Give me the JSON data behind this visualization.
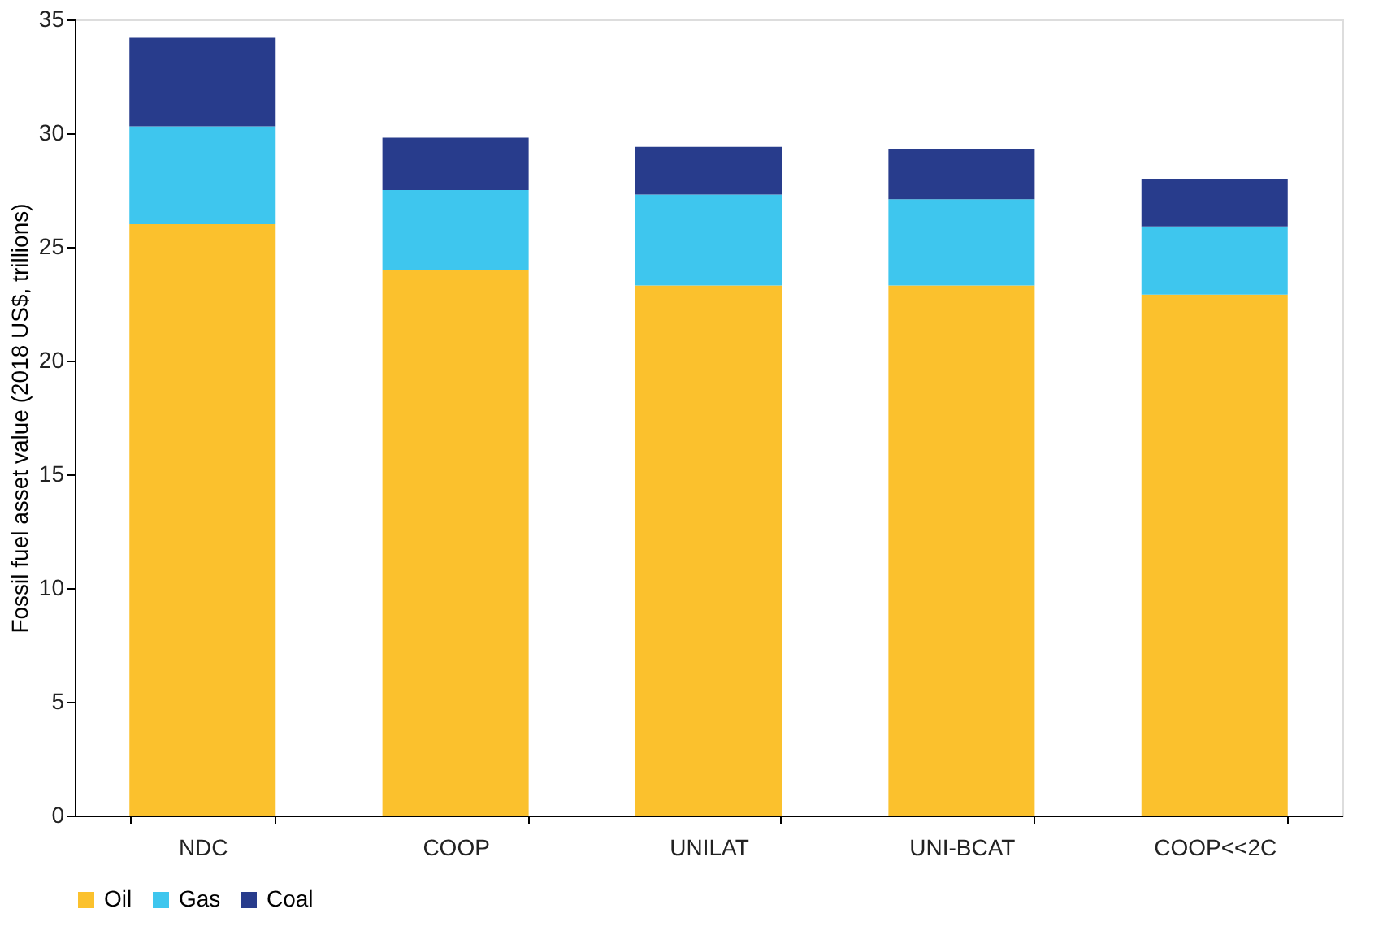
{
  "chart_data": {
    "type": "bar",
    "stacked": true,
    "ylabel": "Fossil fuel asset value (2018 US$, trillions)",
    "categories": [
      "NDC",
      "COOP",
      "UNILAT",
      "UNI-BCAT",
      "COOP<<2C"
    ],
    "series": [
      {
        "name": "Oil",
        "color": "#fbc12d",
        "values": [
          26.0,
          24.0,
          23.3,
          23.3,
          22.9
        ]
      },
      {
        "name": "Gas",
        "color": "#3ec6ee",
        "values": [
          4.3,
          3.5,
          4.0,
          3.8,
          3.0
        ]
      },
      {
        "name": "Coal",
        "color": "#283c8c",
        "values": [
          3.9,
          2.3,
          2.1,
          2.2,
          2.1
        ]
      }
    ],
    "ylim": [
      0,
      35
    ],
    "yticks": [
      0,
      5,
      10,
      15,
      20,
      25,
      30,
      35
    ],
    "grid": false,
    "legend": "bottom"
  }
}
